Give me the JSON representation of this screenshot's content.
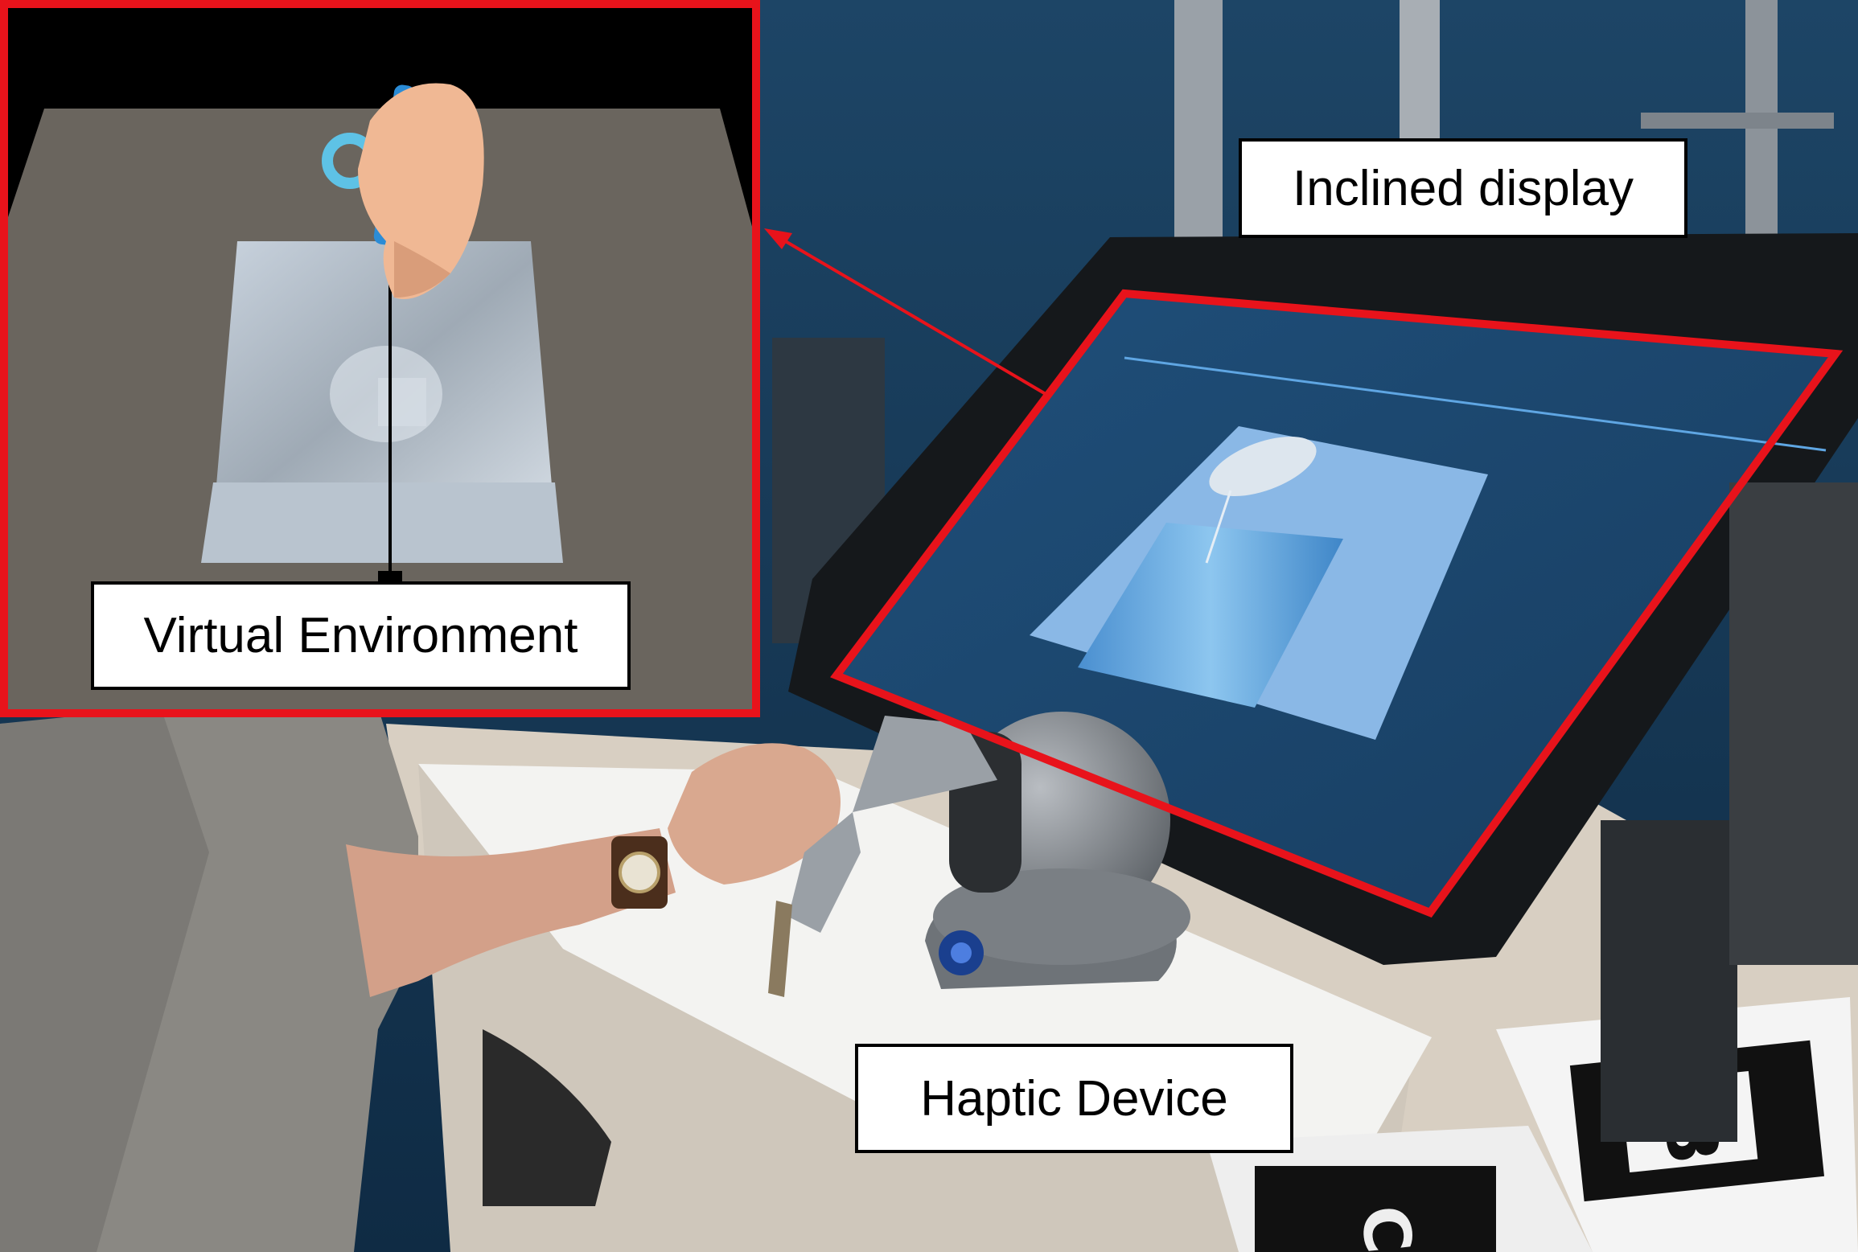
{
  "labels": {
    "inclined_display": "Inclined display",
    "virtual_environment": "Virtual Environment",
    "haptic_device": "Haptic Device"
  },
  "callout": {
    "highlight_color": "#e8131b",
    "label_border_color": "#000000",
    "label_fill_color": "#ffffff"
  },
  "colors": {
    "wall": "#163a58",
    "virtual_floor": "#6a655e",
    "hand_skin": "#f0b894",
    "screen_scene": "#8ab8e6",
    "desk": "#d8cfc2",
    "shirt": "#8a8883",
    "haptic_grey": "#8b8f94"
  }
}
